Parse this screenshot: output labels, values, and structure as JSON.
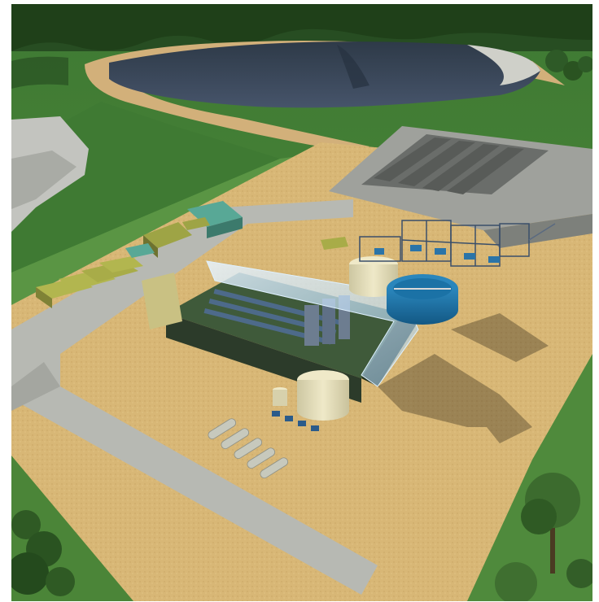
{
  "scene": {
    "kind": "3D rendering of an industrial processing plant site",
    "colors": {
      "grass": "#4f8a3c",
      "grass_dark": "#2f6a2a",
      "dirt": "#d9b878",
      "concrete": "#b6b8b2",
      "pit": "#3a4654",
      "rock": "#c7c8c4",
      "building_dark": "#2c3b2a",
      "tank": "#e8e3c2",
      "thickener": "#1b72a6",
      "steel": "#3a4f6a",
      "container_olive": "#a3a84a",
      "roof_teal": "#58a896",
      "glass": "#cfe8ff",
      "tree": "#3c6b2e"
    },
    "icons": [
      "open-pit-icon",
      "tree-line-icon",
      "processing-building-icon",
      "tank-icon",
      "thickener-icon",
      "tailings-stack-icon",
      "shipping-container-icon",
      "pipe-segment-icon"
    ]
  }
}
